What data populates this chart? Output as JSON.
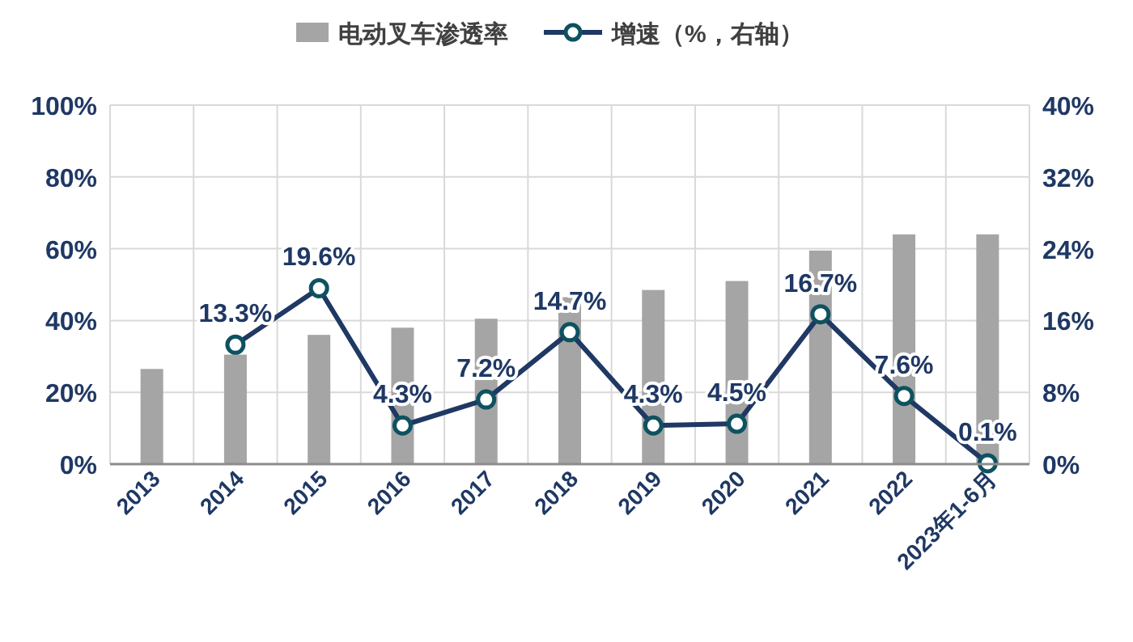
{
  "chart_data": {
    "type": "bar",
    "categories": [
      "2013",
      "2014",
      "2015",
      "2016",
      "2017",
      "2018",
      "2019",
      "2020",
      "2021",
      "2022",
      "2023年1-6月"
    ],
    "series": [
      {
        "name": "电动叉车渗透率",
        "color": "#a5a5a5",
        "values": [
          26.5,
          30.5,
          36,
          38,
          40.5,
          46.5,
          48.5,
          51,
          59.5,
          64,
          64
        ]
      },
      {
        "name": "增速（%，右轴）",
        "type": "line",
        "axis": "y2",
        "color": "#1f3864",
        "marker": "circle",
        "values": [
          null,
          13.3,
          19.6,
          4.3,
          7.2,
          14.7,
          4.3,
          4.5,
          16.7,
          7.6,
          0.1
        ],
        "value_labels": [
          null,
          "13.3%",
          "19.6%",
          "4.3%",
          "7.2%",
          "14.7%",
          "4.3%",
          "4.5%",
          "16.7%",
          "7.6%",
          "0.1%"
        ]
      }
    ],
    "ylim": [
      0,
      100
    ],
    "yticks": [
      {
        "value": 0,
        "label": "0%"
      },
      {
        "value": 20,
        "label": "20%"
      },
      {
        "value": 40,
        "label": "40%"
      },
      {
        "value": 60,
        "label": "60%"
      },
      {
        "value": 80,
        "label": "80%"
      },
      {
        "value": 100,
        "label": "100%"
      }
    ],
    "y2lim": [
      0,
      40
    ],
    "y2ticks": [
      {
        "value": 0,
        "label": "0%"
      },
      {
        "value": 8,
        "label": "8%"
      },
      {
        "value": 16,
        "label": "16%"
      },
      {
        "value": 24,
        "label": "24%"
      },
      {
        "value": 32,
        "label": "32%"
      },
      {
        "value": 40,
        "label": "40%"
      }
    ],
    "grid": true,
    "legend": "top"
  }
}
